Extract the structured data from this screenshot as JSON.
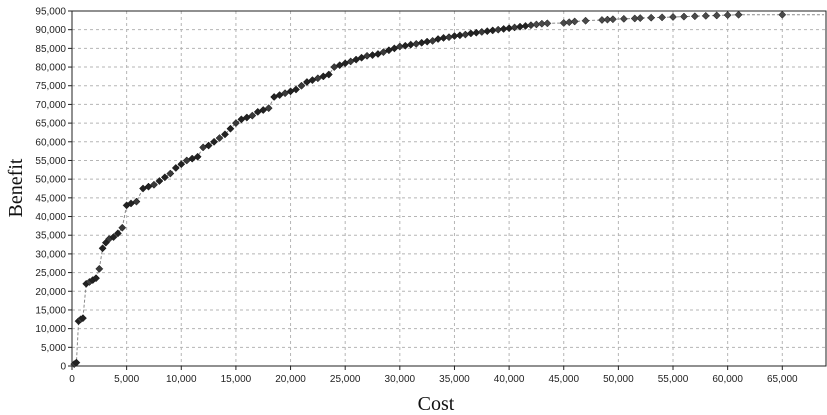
{
  "chart_data": {
    "type": "scatter",
    "title": "",
    "xlabel": "Cost",
    "ylabel": "Benefit",
    "xlim": [
      0,
      69000
    ],
    "ylim": [
      0,
      95000
    ],
    "x_ticks": [
      "0",
      "5,000",
      "10,000",
      "15,000",
      "20,000",
      "25,000",
      "30,000",
      "35,000",
      "40,000",
      "45,000",
      "50,000",
      "55,000",
      "60,000",
      "65,000"
    ],
    "x_tick_values": [
      0,
      5000,
      10000,
      15000,
      20000,
      25000,
      30000,
      35000,
      40000,
      45000,
      50000,
      55000,
      60000,
      65000
    ],
    "y_ticks": [
      "0",
      "5,000",
      "10,000",
      "15,000",
      "20,000",
      "25,000",
      "30,000",
      "35,000",
      "40,000",
      "45,000",
      "50,000",
      "55,000",
      "60,000",
      "65,000",
      "70,000",
      "75,000",
      "80,000",
      "85,000",
      "90,000",
      "95,000"
    ],
    "y_tick_values": [
      0,
      5000,
      10000,
      15000,
      20000,
      25000,
      30000,
      35000,
      40000,
      45000,
      50000,
      55000,
      60000,
      65000,
      70000,
      75000,
      80000,
      85000,
      90000,
      95000
    ],
    "grid": true,
    "frontier_line": "dashed",
    "points": [
      [
        200,
        500
      ],
      [
        400,
        900
      ],
      [
        600,
        12000
      ],
      [
        800,
        12500
      ],
      [
        1000,
        12800
      ],
      [
        1300,
        22000
      ],
      [
        1600,
        22500
      ],
      [
        1900,
        23000
      ],
      [
        2200,
        23500
      ],
      [
        2500,
        26000
      ],
      [
        2800,
        31500
      ],
      [
        3100,
        33000
      ],
      [
        3400,
        34000
      ],
      [
        3800,
        34500
      ],
      [
        4200,
        35500
      ],
      [
        4600,
        37000
      ],
      [
        5000,
        43000
      ],
      [
        5400,
        43500
      ],
      [
        5900,
        44000
      ],
      [
        6500,
        47500
      ],
      [
        7000,
        48000
      ],
      [
        7500,
        48500
      ],
      [
        8000,
        49500
      ],
      [
        8500,
        50500
      ],
      [
        9000,
        51500
      ],
      [
        9500,
        53000
      ],
      [
        10000,
        54000
      ],
      [
        10500,
        55000
      ],
      [
        11000,
        55500
      ],
      [
        11500,
        56000
      ],
      [
        12000,
        58500
      ],
      [
        12500,
        59000
      ],
      [
        13000,
        60000
      ],
      [
        13500,
        61000
      ],
      [
        14000,
        62000
      ],
      [
        14500,
        63500
      ],
      [
        15000,
        65000
      ],
      [
        15500,
        66000
      ],
      [
        16000,
        66500
      ],
      [
        16500,
        67000
      ],
      [
        17000,
        68000
      ],
      [
        17500,
        68500
      ],
      [
        18000,
        69000
      ],
      [
        18500,
        72000
      ],
      [
        19000,
        72500
      ],
      [
        19500,
        73000
      ],
      [
        20000,
        73500
      ],
      [
        20500,
        74000
      ],
      [
        21000,
        75000
      ],
      [
        21500,
        76000
      ],
      [
        22000,
        76500
      ],
      [
        22500,
        77000
      ],
      [
        23000,
        77500
      ],
      [
        23500,
        78000
      ],
      [
        24000,
        80000
      ],
      [
        24500,
        80500
      ],
      [
        25000,
        81000
      ],
      [
        25500,
        81500
      ],
      [
        26000,
        82000
      ],
      [
        26500,
        82500
      ],
      [
        27000,
        83000
      ],
      [
        27500,
        83200
      ],
      [
        28000,
        83500
      ],
      [
        28500,
        84000
      ],
      [
        29000,
        84500
      ],
      [
        29500,
        85000
      ],
      [
        30000,
        85500
      ],
      [
        30500,
        85700
      ],
      [
        31000,
        86000
      ],
      [
        31500,
        86200
      ],
      [
        32000,
        86500
      ],
      [
        32500,
        86800
      ],
      [
        33000,
        87000
      ],
      [
        33500,
        87500
      ],
      [
        34000,
        87800
      ],
      [
        34500,
        88000
      ],
      [
        35000,
        88300
      ],
      [
        35500,
        88500
      ],
      [
        36000,
        88700
      ],
      [
        36500,
        89000
      ],
      [
        37000,
        89200
      ],
      [
        37500,
        89400
      ],
      [
        38000,
        89600
      ],
      [
        38500,
        89800
      ],
      [
        39000,
        90000
      ],
      [
        39500,
        90200
      ],
      [
        40000,
        90400
      ],
      [
        40500,
        90600
      ],
      [
        41000,
        90800
      ],
      [
        41500,
        91000
      ],
      [
        42000,
        91200
      ],
      [
        42500,
        91400
      ],
      [
        43000,
        91600
      ],
      [
        43500,
        91700
      ],
      [
        45000,
        91800
      ],
      [
        45500,
        92000
      ],
      [
        46000,
        92200
      ],
      [
        47000,
        92400
      ],
      [
        48500,
        92600
      ],
      [
        49000,
        92700
      ],
      [
        49500,
        92800
      ],
      [
        50500,
        92900
      ],
      [
        51500,
        93000
      ],
      [
        52000,
        93100
      ],
      [
        53000,
        93200
      ],
      [
        54000,
        93300
      ],
      [
        55000,
        93400
      ],
      [
        56000,
        93500
      ],
      [
        57000,
        93600
      ],
      [
        58000,
        93700
      ],
      [
        59000,
        93800
      ],
      [
        60000,
        93900
      ],
      [
        61000,
        94000
      ],
      [
        65000,
        94000
      ]
    ]
  }
}
